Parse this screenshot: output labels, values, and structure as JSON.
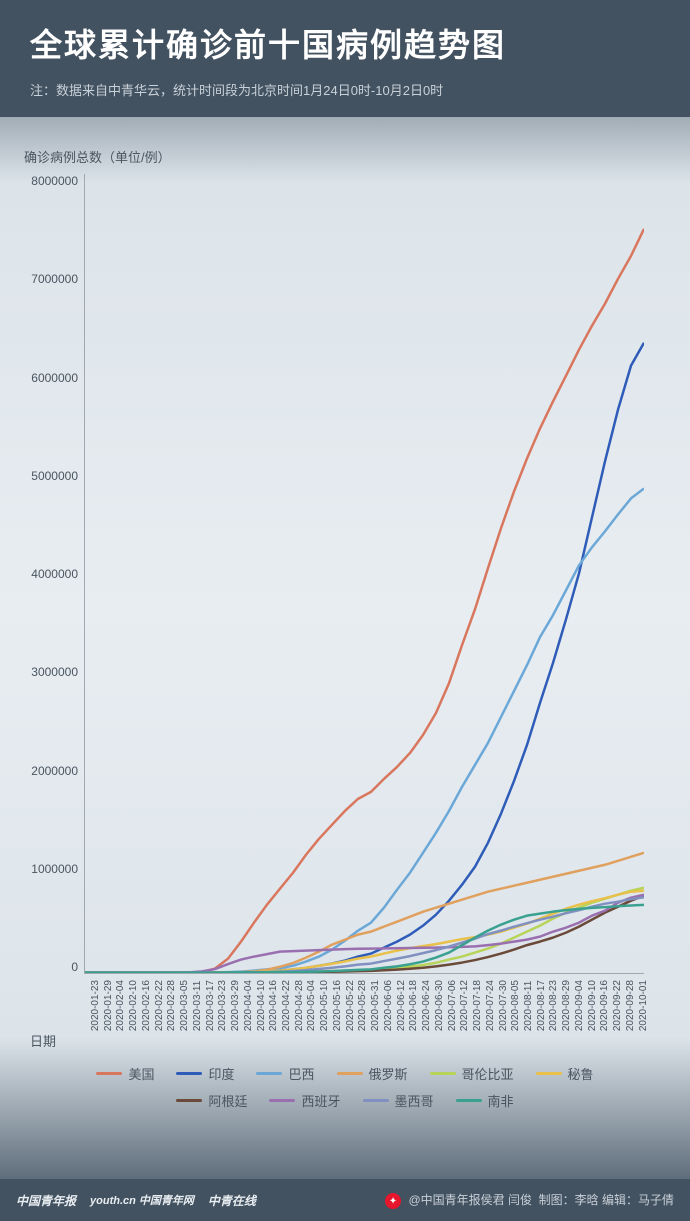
{
  "header": {
    "title": "全球累计确诊前十国病例趋势图",
    "subtitle": "注：数据来自中青华云，统计时间段为北京时间1月24日0时-10月2日0时"
  },
  "chart": {
    "type": "line",
    "yaxis_title": "确诊病例总数（单位/例）",
    "xaxis_title": "日期",
    "ylim": [
      0,
      8000000
    ],
    "ytick_step": 1000000,
    "yticks": [
      "8000000",
      "7000000",
      "6000000",
      "5000000",
      "4000000",
      "3000000",
      "2000000",
      "1000000",
      "0"
    ],
    "ytick_fontsize": 12,
    "label_fontsize": 13,
    "xlabel_fontsize": 10,
    "axis_color": "#a0a8b0",
    "text_color": "#4a5560",
    "background_gradient": [
      "#3a4a5a",
      "#dce4ea",
      "#e8edf1"
    ],
    "line_width": 2.5,
    "xlabels": [
      "2020-01-23",
      "2020-01-29",
      "2020-02-04",
      "2020-02-10",
      "2020-02-16",
      "2020-02-22",
      "2020-02-28",
      "2020-03-05",
      "2020-03-11",
      "2020-03-17",
      "2020-03-23",
      "2020-03-29",
      "2020-04-04",
      "2020-04-10",
      "2020-04-16",
      "2020-04-22",
      "2020-04-28",
      "2020-05-04",
      "2020-05-10",
      "2020-05-16",
      "2020-05-22",
      "2020-05-28",
      "2020-05-31",
      "2020-06-06",
      "2020-06-12",
      "2020-06-18",
      "2020-06-24",
      "2020-06-30",
      "2020-07-06",
      "2020-07-12",
      "2020-07-18",
      "2020-07-24",
      "2020-07-30",
      "2020-08-05",
      "2020-08-11",
      "2020-08-17",
      "2020-08-23",
      "2020-08-29",
      "2020-09-04",
      "2020-09-10",
      "2020-09-16",
      "2020-09-22",
      "2020-09-28",
      "2020-10-01"
    ],
    "series": [
      {
        "name": "美国",
        "color": "#d9765e",
        "values": [
          0,
          0,
          0,
          0,
          0,
          0,
          0,
          0,
          0,
          5000,
          40000,
          140000,
          310000,
          500000,
          680000,
          840000,
          1000000,
          1180000,
          1340000,
          1480000,
          1620000,
          1740000,
          1810000,
          1940000,
          2060000,
          2200000,
          2380000,
          2600000,
          2900000,
          3280000,
          3640000,
          4050000,
          4450000,
          4820000,
          5150000,
          5450000,
          5720000,
          5980000,
          6240000,
          6480000,
          6700000,
          6950000,
          7180000,
          7450000
        ]
      },
      {
        "name": "印度",
        "color": "#2e5cb8",
        "values": [
          0,
          0,
          0,
          0,
          0,
          0,
          0,
          0,
          0,
          0,
          0,
          1000,
          3000,
          8000,
          14000,
          22000,
          32000,
          47000,
          68000,
          90000,
          120000,
          160000,
          190000,
          250000,
          310000,
          380000,
          470000,
          580000,
          720000,
          880000,
          1060000,
          1300000,
          1590000,
          1920000,
          2280000,
          2700000,
          3100000,
          3540000,
          4000000,
          4560000,
          5120000,
          5640000,
          6080000,
          6310000
        ]
      },
      {
        "name": "巴西",
        "color": "#6ba8d8",
        "values": [
          0,
          0,
          0,
          0,
          0,
          0,
          0,
          0,
          0,
          0,
          2000,
          4500,
          10000,
          20000,
          32000,
          46000,
          68000,
          110000,
          160000,
          230000,
          320000,
          420000,
          500000,
          650000,
          830000,
          1000000,
          1200000,
          1400000,
          1620000,
          1860000,
          2080000,
          2300000,
          2560000,
          2820000,
          3080000,
          3360000,
          3580000,
          3830000,
          4080000,
          4260000,
          4420000,
          4590000,
          4750000,
          4850000
        ]
      },
      {
        "name": "俄罗斯",
        "color": "#e0a05e",
        "values": [
          0,
          0,
          0,
          0,
          0,
          0,
          0,
          0,
          0,
          0,
          0,
          2000,
          5000,
          12000,
          28000,
          58000,
          95000,
          150000,
          210000,
          280000,
          330000,
          380000,
          410000,
          460000,
          510000,
          560000,
          610000,
          650000,
          690000,
          730000,
          770000,
          810000,
          840000,
          870000,
          900000,
          930000,
          960000,
          990000,
          1020000,
          1050000,
          1080000,
          1120000,
          1160000,
          1200000
        ]
      },
      {
        "name": "哥伦比亚",
        "color": "#b8d458",
        "values": [
          0,
          0,
          0,
          0,
          0,
          0,
          0,
          0,
          0,
          0,
          0,
          0,
          1500,
          2800,
          3500,
          4500,
          6000,
          8500,
          12000,
          16000,
          20000,
          25000,
          28000,
          38000,
          48000,
          60000,
          75000,
          98000,
          130000,
          160000,
          200000,
          240000,
          290000,
          350000,
          410000,
          470000,
          540000,
          600000,
          650000,
          700000,
          740000,
          780000,
          820000,
          850000
        ]
      },
      {
        "name": "秘鲁",
        "color": "#e8c04a",
        "values": [
          0,
          0,
          0,
          0,
          0,
          0,
          0,
          0,
          0,
          0,
          0,
          1000,
          2000,
          6000,
          13000,
          20000,
          32000,
          48000,
          68000,
          88000,
          112000,
          140000,
          160000,
          190000,
          220000,
          245000,
          265000,
          285000,
          310000,
          335000,
          355000,
          380000,
          410000,
          450000,
          490000,
          540000,
          590000,
          640000,
          680000,
          715000,
          745000,
          780000,
          810000,
          820000
        ]
      },
      {
        "name": "阿根廷",
        "color": "#6b4a3a",
        "values": [
          0,
          0,
          0,
          0,
          0,
          0,
          0,
          0,
          0,
          0,
          0,
          0,
          1500,
          2100,
          2800,
          3500,
          4200,
          5200,
          6300,
          8000,
          10500,
          14000,
          17000,
          23000,
          30000,
          38000,
          48000,
          62000,
          80000,
          100000,
          125000,
          155000,
          190000,
          230000,
          275000,
          310000,
          350000,
          400000,
          460000,
          530000,
          600000,
          660000,
          720000,
          770000
        ]
      },
      {
        "name": "西班牙",
        "color": "#9a6fb0",
        "values": [
          0,
          0,
          0,
          0,
          0,
          0,
          0,
          0,
          2000,
          12000,
          35000,
          85000,
          130000,
          160000,
          185000,
          210000,
          215000,
          220000,
          225000,
          230000,
          235000,
          238000,
          240000,
          242000,
          244000,
          246000,
          248000,
          250000,
          253000,
          257000,
          262000,
          275000,
          290000,
          310000,
          330000,
          360000,
          410000,
          450000,
          500000,
          570000,
          620000,
          700000,
          750000,
          780000
        ]
      },
      {
        "name": "墨西哥",
        "color": "#8090c0",
        "values": [
          0,
          0,
          0,
          0,
          0,
          0,
          0,
          0,
          0,
          0,
          0,
          1200,
          2200,
          4000,
          6500,
          10500,
          16000,
          25000,
          36000,
          48000,
          62000,
          80000,
          90000,
          115000,
          140000,
          165000,
          195000,
          225000,
          260000,
          300000,
          340000,
          385000,
          420000,
          460000,
          495000,
          530000,
          560000,
          595000,
          625000,
          660000,
          690000,
          710000,
          735000,
          755000
        ]
      },
      {
        "name": "南非",
        "color": "#3aa090",
        "values": [
          0,
          0,
          0,
          0,
          0,
          0,
          0,
          0,
          0,
          0,
          0,
          1300,
          1700,
          2100,
          2800,
          3800,
          5000,
          7500,
          11000,
          15000,
          21000,
          27000,
          32000,
          48000,
          62000,
          83000,
          110000,
          150000,
          200000,
          275000,
          350000,
          420000,
          480000,
          530000,
          570000,
          590000,
          610000,
          625000,
          638000,
          648000,
          655000,
          665000,
          672000,
          678000
        ]
      }
    ]
  },
  "footer": {
    "logos": [
      "中国青年报",
      "youth.cn 中国青年网",
      "中青在线"
    ],
    "weibo": "@中国青年报侯君 闫俊",
    "credits": "制图：李晗 编辑：马子倩"
  }
}
